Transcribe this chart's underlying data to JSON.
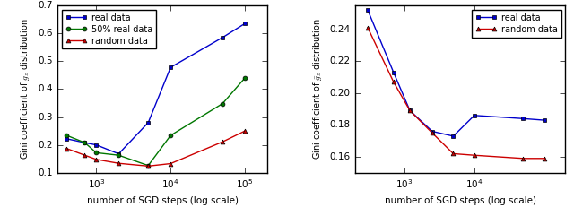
{
  "left": {
    "x_real": [
      400,
      700,
      1000,
      2000,
      5000,
      10000,
      50000,
      100000
    ],
    "y_real": [
      0.222,
      0.208,
      0.2,
      0.168,
      0.28,
      0.478,
      0.585,
      0.635
    ],
    "x_half": [
      400,
      700,
      1000,
      2000,
      5000,
      10000,
      50000,
      100000
    ],
    "y_half": [
      0.234,
      0.208,
      0.172,
      0.163,
      0.126,
      0.234,
      0.348,
      0.44
    ],
    "x_rand": [
      400,
      700,
      1000,
      2000,
      5000,
      10000,
      50000,
      100000
    ],
    "y_rand": [
      0.187,
      0.163,
      0.148,
      0.134,
      0.124,
      0.133,
      0.211,
      0.25
    ],
    "ylabel": "Gini coefficient of $\\bar{g}_z$ distribution",
    "xlabel": "number of SGD steps (log scale)",
    "ylim": [
      0.1,
      0.7
    ],
    "yticks": [
      0.1,
      0.2,
      0.3,
      0.4,
      0.5,
      0.6,
      0.7
    ],
    "xticks": [
      1000,
      10000,
      100000
    ],
    "xlim": [
      300,
      200000
    ],
    "color_real": "#0000cc",
    "color_half": "#007700",
    "color_rand": "#cc0000",
    "label_real": "real data",
    "label_half": "50% real data",
    "label_rand": "random data"
  },
  "right": {
    "x_real": [
      300,
      700,
      1200,
      2500,
      5000,
      10000,
      50000,
      100000
    ],
    "y_real": [
      0.252,
      0.213,
      0.189,
      0.176,
      0.173,
      0.186,
      0.184,
      0.183
    ],
    "x_rand": [
      300,
      700,
      1200,
      2500,
      5000,
      10000,
      50000,
      100000
    ],
    "y_rand": [
      0.241,
      0.207,
      0.189,
      0.175,
      0.162,
      0.161,
      0.159,
      0.159
    ],
    "ylabel": "Gini coefficient of $\\bar{g}_z$ distribution",
    "xlabel": "number of SGD steps (log scale)",
    "ylim": [
      0.15,
      0.255
    ],
    "yticks": [
      0.16,
      0.18,
      0.2,
      0.22,
      0.24
    ],
    "xticks": [
      1000,
      10000
    ],
    "xlim": [
      200,
      200000
    ],
    "color_real": "#0000cc",
    "color_rand": "#cc0000",
    "label_real": "real data",
    "label_rand": "random data"
  },
  "fig_width": 6.4,
  "fig_height": 2.41,
  "dpi": 100
}
